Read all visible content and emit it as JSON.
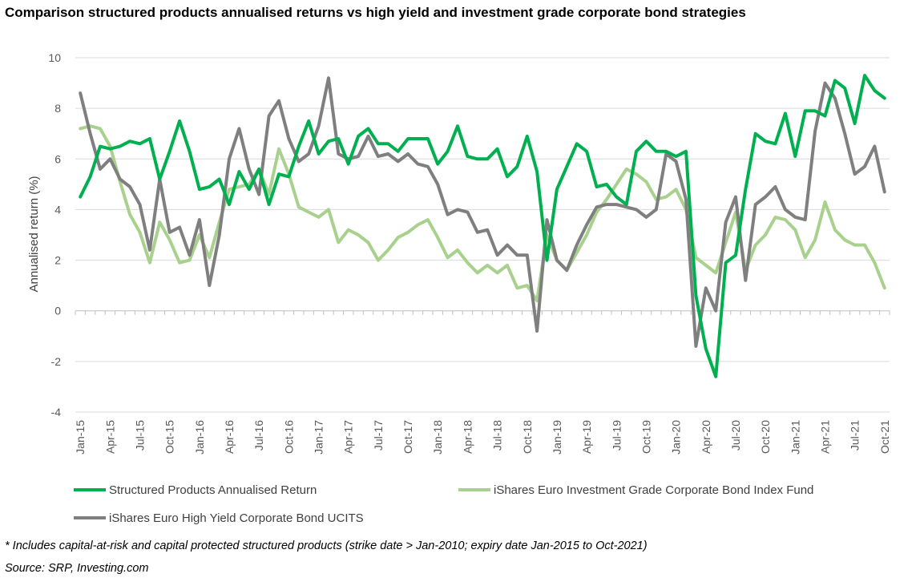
{
  "chart_data": {
    "type": "line",
    "title": "Comparison structured products annualised returns vs high yield and investment grade corporate bond strategies",
    "ylabel": "Annualised return (%)",
    "ylim": [
      -4,
      10
    ],
    "yticks": [
      -4,
      -2,
      0,
      2,
      4,
      6,
      8,
      10
    ],
    "grid": "horizontal",
    "legend": "bottom",
    "x_start": "Jan-15",
    "x_tick_labels": [
      "Jan-15",
      "Apr-15",
      "Jul-15",
      "Oct-15",
      "Jan-16",
      "Apr-16",
      "Jul-16",
      "Oct-16",
      "Jan-17",
      "Apr-17",
      "Jul-17",
      "Oct-17",
      "Jan-18",
      "Apr-18",
      "Jul-18",
      "Oct-18",
      "Jan-19",
      "Apr-19",
      "Jul-19",
      "Oct-19",
      "Jan-20",
      "Apr-20",
      "Jul-20",
      "Oct-20",
      "Jan-21",
      "Apr-21",
      "Jul-21",
      "Oct-21"
    ],
    "series": [
      {
        "name": "Structured Products Annualised Return",
        "color": "#00b050",
        "values": [
          4.5,
          5.3,
          6.5,
          6.4,
          6.5,
          6.7,
          6.6,
          6.8,
          5.2,
          6.3,
          7.5,
          6.3,
          4.8,
          4.9,
          5.2,
          4.2,
          5.5,
          4.8,
          5.6,
          4.2,
          5.4,
          5.3,
          6.5,
          7.5,
          6.2,
          6.7,
          6.8,
          5.8,
          6.9,
          7.2,
          6.6,
          6.6,
          6.3,
          6.8,
          6.8,
          6.8,
          5.8,
          6.3,
          7.3,
          6.1,
          6.0,
          6.0,
          6.4,
          5.3,
          5.7,
          6.9,
          5.5,
          2.0,
          4.8,
          5.7,
          6.6,
          6.3,
          4.9,
          5.0,
          4.5,
          4.2,
          6.3,
          6.7,
          6.3,
          6.3,
          6.1,
          6.3,
          0.6,
          -1.5,
          -2.6,
          1.9,
          2.2,
          4.8,
          7.0,
          6.7,
          6.6,
          7.8,
          6.1,
          7.9,
          7.9,
          7.7,
          9.1,
          8.8,
          7.4,
          9.3,
          8.7,
          8.4
        ]
      },
      {
        "name": "iShares Euro Investment Grade Corporate Bond Index Fund",
        "color": "#a9d18e",
        "values": [
          7.2,
          7.3,
          7.2,
          6.5,
          5.1,
          3.8,
          3.1,
          1.9,
          3.5,
          2.8,
          1.9,
          2.0,
          3.0,
          2.1,
          3.5,
          4.8,
          4.9,
          5.0,
          5.6,
          4.6,
          6.4,
          5.4,
          4.1,
          3.9,
          3.7,
          4.0,
          2.7,
          3.2,
          3.0,
          2.7,
          2.0,
          2.4,
          2.9,
          3.1,
          3.4,
          3.6,
          2.9,
          2.1,
          2.4,
          1.9,
          1.5,
          1.8,
          1.5,
          1.8,
          0.9,
          1.0,
          0.4,
          3.0,
          2.0,
          1.6,
          2.3,
          3.0,
          3.9,
          4.4,
          5.0,
          5.6,
          5.4,
          5.1,
          4.4,
          4.5,
          4.8,
          4.0,
          2.1,
          1.8,
          1.5,
          2.7,
          3.9,
          1.6,
          2.6,
          3.0,
          3.7,
          3.6,
          3.2,
          2.1,
          2.8,
          4.3,
          3.2,
          2.8,
          2.6,
          2.6,
          1.9,
          0.9
        ]
      },
      {
        "name": "iShares Euro High Yield Corporate Bond UCITS",
        "color": "#7f7f7f",
        "values": [
          8.6,
          7.0,
          5.6,
          6.0,
          5.2,
          4.9,
          4.2,
          2.4,
          5.2,
          3.1,
          3.3,
          2.2,
          3.6,
          1.0,
          3.0,
          6.0,
          7.2,
          5.6,
          4.6,
          7.7,
          8.3,
          6.8,
          5.9,
          6.2,
          7.3,
          9.2,
          6.2,
          6.0,
          6.1,
          6.9,
          6.1,
          6.2,
          5.9,
          6.2,
          5.8,
          5.7,
          5.0,
          3.8,
          4.0,
          3.9,
          3.1,
          3.2,
          2.2,
          2.6,
          2.2,
          2.2,
          -0.8,
          3.6,
          2.0,
          1.6,
          2.6,
          3.4,
          4.1,
          4.2,
          4.2,
          4.1,
          4.0,
          3.7,
          4.0,
          6.2,
          5.9,
          4.4,
          -1.4,
          0.9,
          0.0,
          3.5,
          4.5,
          1.2,
          4.2,
          4.5,
          4.9,
          4.0,
          3.7,
          3.6,
          7.1,
          9.0,
          8.4,
          7.0,
          5.4,
          5.7,
          6.5,
          4.7
        ]
      }
    ]
  },
  "note": "* Includes capital-at-risk and capital protected structured products (strike date > Jan-2010; expiry date Jan-2015 to Oct-2021)",
  "source": "Source: SRP, Investing.com"
}
